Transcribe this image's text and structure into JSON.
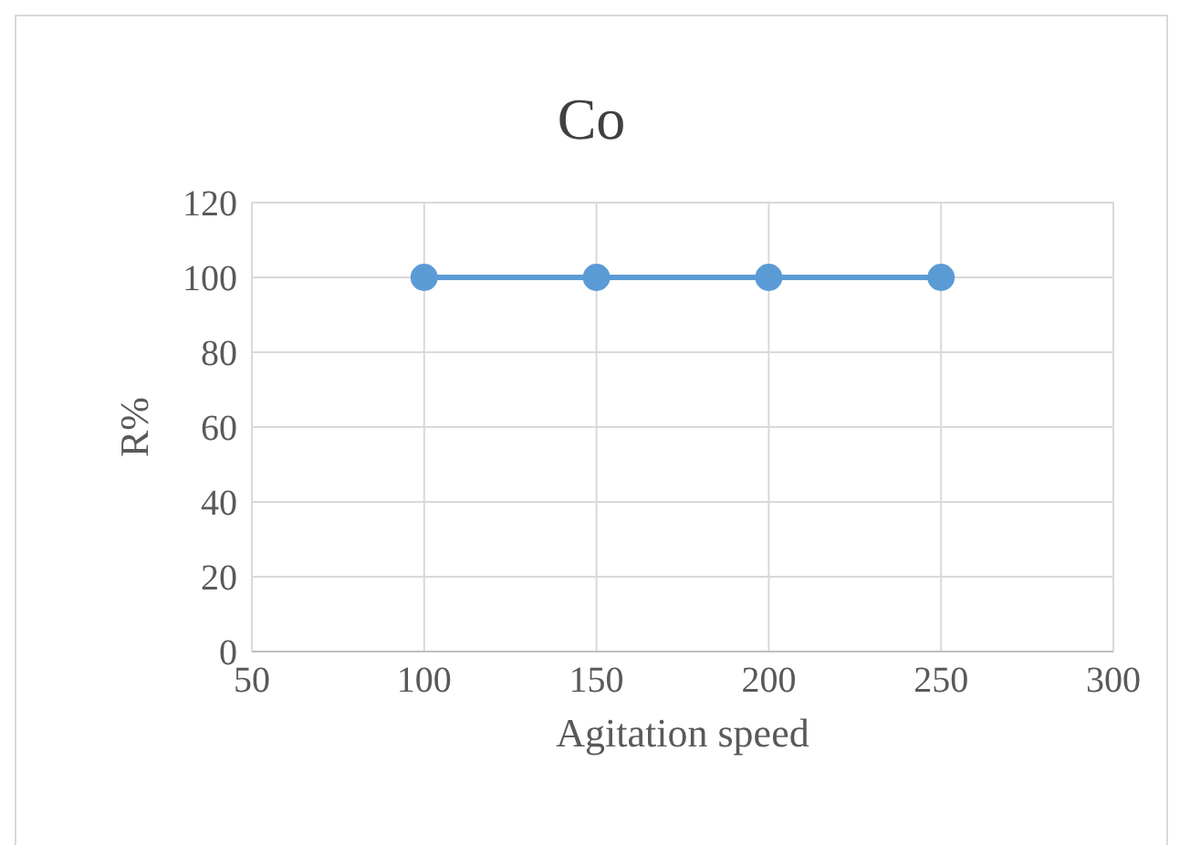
{
  "chart_data": {
    "type": "line",
    "title": "Co",
    "xlabel": "Agitation speed",
    "ylabel": "R%",
    "x": [
      100,
      150,
      200,
      250
    ],
    "series": [
      {
        "color": "#5b9bd5",
        "values": [
          100,
          100,
          100,
          100
        ]
      }
    ],
    "xlim": [
      50,
      300
    ],
    "xticks": [
      50,
      100,
      150,
      200,
      250,
      300
    ],
    "ylim": [
      0,
      120
    ],
    "yticks": [
      0,
      20,
      40,
      60,
      80,
      100,
      120
    ],
    "grid": true,
    "marker": "circle",
    "line_style": "solid",
    "legend": false
  }
}
